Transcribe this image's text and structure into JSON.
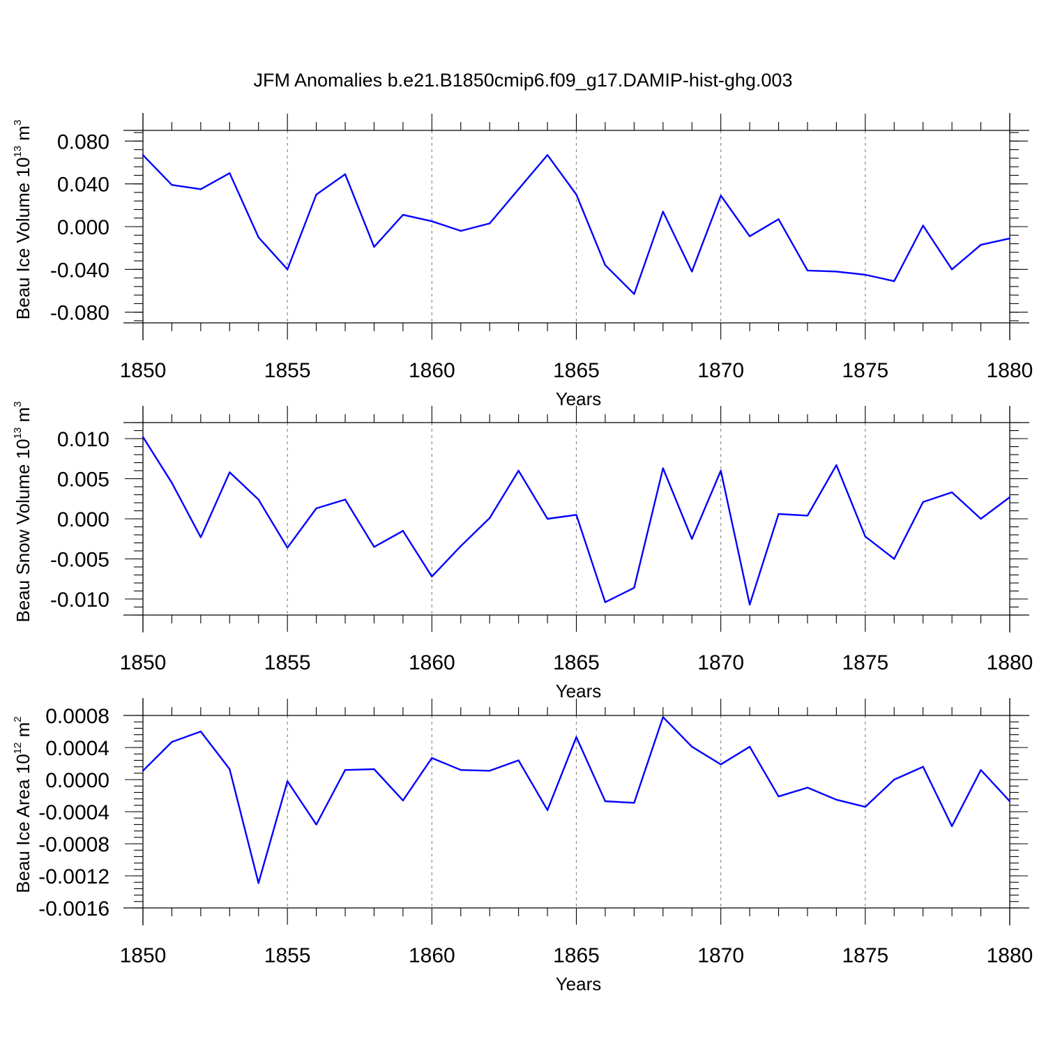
{
  "title": "JFM Anomalies b.e21.B1850cmip6.f09_g17.DAMIP-hist-ghg.003",
  "colors": {
    "line": "#0000ff",
    "grid": "#888888",
    "axis": "#000000"
  },
  "chart_data": [
    {
      "type": "line",
      "panel": "top",
      "ylabel": {
        "text": "Beau Ice Volume 10",
        "sup": "13",
        "unit": " m",
        "unit_sup": "3"
      },
      "xlabel": "Years",
      "xlim": [
        1850,
        1880
      ],
      "ylim": [
        -0.09,
        0.09
      ],
      "xticks": [
        1850,
        1855,
        1860,
        1865,
        1870,
        1875,
        1880
      ],
      "yticks": [
        0.08,
        0.04,
        0.0,
        -0.04,
        -0.08
      ],
      "ytick_labels": [
        "0.080",
        "0.040",
        "0.000",
        "-0.040",
        "-0.080"
      ],
      "minor_y_step": 0.008,
      "x": [
        1850,
        1851,
        1852,
        1853,
        1854,
        1855,
        1856,
        1857,
        1858,
        1859,
        1860,
        1861,
        1862,
        1863,
        1864,
        1865,
        1866,
        1867,
        1868,
        1869,
        1870,
        1871,
        1872,
        1873,
        1874,
        1875,
        1876,
        1877,
        1878,
        1879,
        1880
      ],
      "values": [
        0.067,
        0.039,
        0.035,
        0.05,
        -0.01,
        -0.04,
        0.03,
        0.049,
        -0.019,
        0.011,
        0.005,
        -0.004,
        0.003,
        0.035,
        0.067,
        0.03,
        -0.036,
        -0.063,
        0.014,
        -0.042,
        0.029,
        -0.009,
        0.007,
        -0.041,
        -0.042,
        -0.045,
        -0.051,
        0.001,
        -0.04,
        -0.017,
        -0.011
      ]
    },
    {
      "type": "line",
      "panel": "middle",
      "ylabel": {
        "text": "Beau Snow Volume 10",
        "sup": "13",
        "unit": " m",
        "unit_sup": "3"
      },
      "xlabel": "Years",
      "xlim": [
        1850,
        1880
      ],
      "ylim": [
        -0.012,
        0.012
      ],
      "xticks": [
        1850,
        1855,
        1860,
        1865,
        1870,
        1875,
        1880
      ],
      "yticks": [
        0.01,
        0.005,
        0.0,
        -0.005,
        -0.01
      ],
      "ytick_labels": [
        "0.010",
        "0.005",
        "0.000",
        "-0.005",
        "-0.010"
      ],
      "minor_y_step": 0.001,
      "x": [
        1850,
        1851,
        1852,
        1853,
        1854,
        1855,
        1856,
        1857,
        1858,
        1859,
        1860,
        1861,
        1862,
        1863,
        1864,
        1865,
        1866,
        1867,
        1868,
        1869,
        1870,
        1871,
        1872,
        1873,
        1874,
        1875,
        1876,
        1877,
        1878,
        1879,
        1880
      ],
      "values": [
        0.0102,
        0.0045,
        -0.0023,
        0.0058,
        0.0024,
        -0.0036,
        0.0013,
        0.0024,
        -0.0035,
        -0.0015,
        -0.0072,
        -0.0034,
        0.0001,
        0.006,
        0.0,
        0.0005,
        -0.0104,
        -0.0086,
        0.0063,
        -0.0025,
        0.006,
        -0.0107,
        0.0006,
        0.0004,
        0.0067,
        -0.0022,
        -0.005,
        0.0021,
        0.0033,
        0.0,
        0.0027
      ]
    },
    {
      "type": "line",
      "panel": "bottom",
      "ylabel": {
        "text": "Beau Ice Area 10",
        "sup": "12",
        "unit": " m",
        "unit_sup": "2"
      },
      "xlabel": "Years",
      "xlim": [
        1850,
        1880
      ],
      "ylim": [
        -0.0016,
        0.0008
      ],
      "xticks": [
        1850,
        1855,
        1860,
        1865,
        1870,
        1875,
        1880
      ],
      "yticks": [
        0.0008,
        0.0004,
        0.0,
        -0.0004,
        -0.0008,
        -0.0012,
        -0.0016
      ],
      "ytick_labels": [
        "0.0008",
        "0.0004",
        "0.0000",
        "-0.0004",
        "-0.0008",
        "-0.0012",
        "-0.0016"
      ],
      "minor_y_step": 8e-05,
      "x": [
        1850,
        1851,
        1852,
        1853,
        1854,
        1855,
        1856,
        1857,
        1858,
        1859,
        1860,
        1861,
        1862,
        1863,
        1864,
        1865,
        1866,
        1867,
        1868,
        1869,
        1870,
        1871,
        1872,
        1873,
        1874,
        1875,
        1876,
        1877,
        1878,
        1879,
        1880
      ],
      "values": [
        0.00011,
        0.00047,
        0.0006,
        0.00013,
        -0.00129,
        -2e-05,
        -0.00056,
        0.00012,
        0.00013,
        -0.00026,
        0.00027,
        0.00012,
        0.00011,
        0.00024,
        -0.00038,
        0.00053,
        -0.00027,
        -0.00029,
        0.00078,
        0.00041,
        0.00019,
        0.00041,
        -0.00021,
        -0.0001,
        -0.00025,
        -0.00034,
        0.0,
        0.00016,
        -0.00058,
        0.00012,
        -0.00027
      ]
    }
  ]
}
